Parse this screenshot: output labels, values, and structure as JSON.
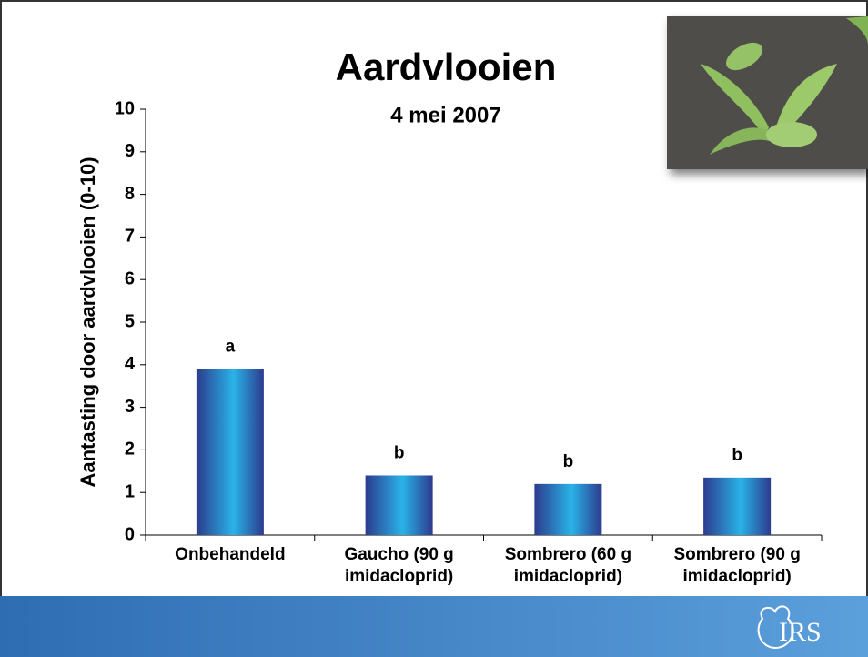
{
  "chart_data": {
    "type": "bar",
    "title": "Aardvlooien",
    "subtitle": "4 mei 2007",
    "y_label": "Aantasting door aardvlooien (0-10)",
    "categories": [
      "Onbehandeld",
      "Gaucho (90 g\nimidacloprid)",
      "Sombrero (60 g\nimidacloprid)",
      "Sombrero (90 g\nimidacloprid)"
    ],
    "values": [
      3.9,
      1.4,
      1.2,
      1.35
    ],
    "annotations": [
      "a",
      "b",
      "b",
      "b"
    ],
    "color": "#2ab3e8",
    "edge_color": "#2c3b8e",
    "ylim": [
      0,
      10
    ],
    "yticks": [
      0,
      1,
      2,
      3,
      4,
      5,
      6,
      7,
      8,
      9,
      10
    ],
    "grid": false
  },
  "logo": "IRS"
}
